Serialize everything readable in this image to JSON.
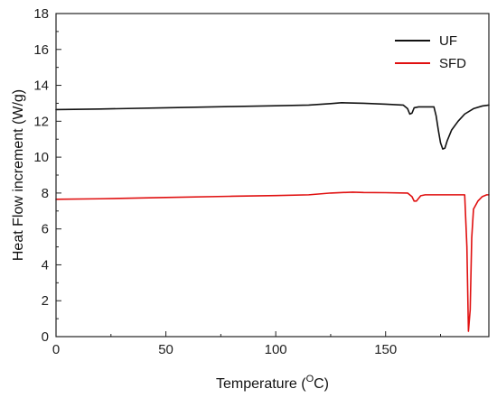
{
  "chart_data": {
    "type": "line",
    "xlabel_main": "Temperature (",
    "xlabel_sup": "O",
    "xlabel_end": "C)",
    "ylabel": "Heat Flow increment (W/g)",
    "xlim": [
      0,
      197
    ],
    "ylim": [
      0,
      18
    ],
    "xticks": [
      0,
      50,
      100,
      150
    ],
    "yticks": [
      0,
      2,
      4,
      6,
      8,
      10,
      12,
      14,
      16,
      18
    ],
    "grid": false,
    "legend_position": "top-right",
    "series": [
      {
        "name": "UF",
        "color": "#111111",
        "x": [
          0,
          20,
          50,
          80,
          100,
          115,
          125,
          130,
          140,
          150,
          158,
          160,
          161,
          162,
          163,
          165,
          170,
          172,
          173,
          174,
          175,
          176,
          177,
          178,
          180,
          183,
          186,
          190,
          194,
          197
        ],
        "y": [
          12.65,
          12.68,
          12.75,
          12.82,
          12.86,
          12.9,
          12.98,
          13.03,
          13.0,
          12.95,
          12.9,
          12.7,
          12.4,
          12.45,
          12.75,
          12.8,
          12.8,
          12.8,
          12.3,
          11.5,
          10.8,
          10.45,
          10.5,
          10.9,
          11.5,
          12.0,
          12.4,
          12.7,
          12.85,
          12.9
        ]
      },
      {
        "name": "SFD",
        "color": "#e01010",
        "x": [
          0,
          20,
          50,
          80,
          100,
          115,
          125,
          135,
          140,
          150,
          160,
          162,
          163,
          164,
          165,
          166,
          168,
          170,
          180,
          186,
          187,
          187.7,
          188.5,
          189.2,
          190,
          192,
          194,
          196,
          197
        ],
        "y": [
          7.65,
          7.68,
          7.75,
          7.82,
          7.86,
          7.9,
          8.0,
          8.05,
          8.03,
          8.02,
          8.0,
          7.8,
          7.55,
          7.55,
          7.7,
          7.85,
          7.9,
          7.9,
          7.9,
          7.9,
          5.0,
          0.3,
          1.5,
          5.5,
          7.1,
          7.55,
          7.8,
          7.9,
          7.9
        ]
      }
    ]
  }
}
